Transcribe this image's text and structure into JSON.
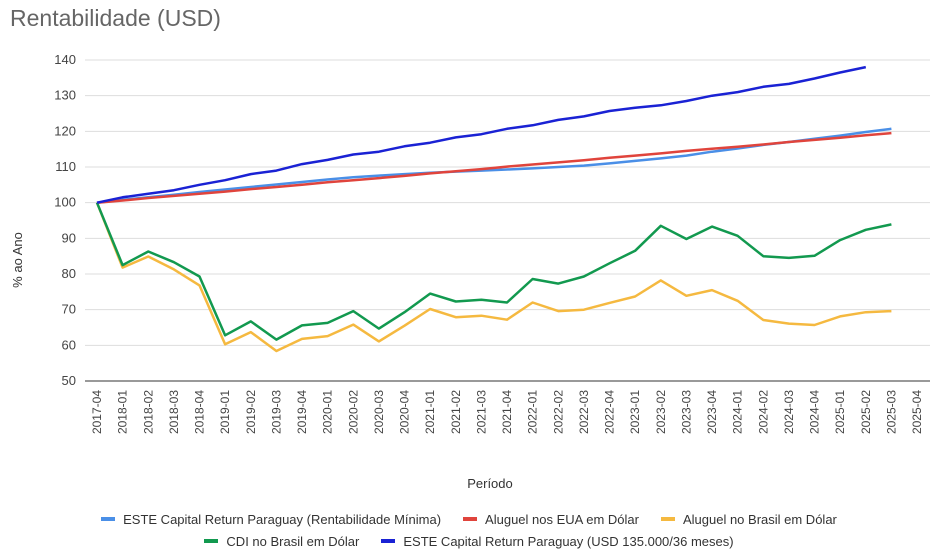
{
  "chart_data": {
    "type": "line",
    "title": "Rentabilidade (USD)",
    "x_label": "Período",
    "y_label": "% ao Ano",
    "categories": [
      "2017-04",
      "2018-01",
      "2018-02",
      "2018-03",
      "2018-04",
      "2019-01",
      "2019-02",
      "2019-03",
      "2019-04",
      "2020-01",
      "2020-02",
      "2020-03",
      "2020-04",
      "2021-01",
      "2021-02",
      "2021-03",
      "2021-04",
      "2022-01",
      "2022-02",
      "2022-03",
      "2022-04",
      "2023-01",
      "2023-02",
      "2023-03",
      "2023-04",
      "2024-01",
      "2024-02",
      "2024-03",
      "2024-04",
      "2025-01",
      "2025-02",
      "2025-03",
      "2025-04"
    ],
    "ylim": [
      50,
      140
    ],
    "yticks": [
      50,
      60,
      70,
      80,
      90,
      100,
      110,
      120,
      130,
      140
    ],
    "grid": true,
    "series": [
      {
        "name": "ESTE Capital Return Paraguay (Rentabilidade Mínima)",
        "color": "#4a8fe7",
        "values": [
          100,
          100.8,
          101.5,
          102.2,
          103,
          103.7,
          104.4,
          105.1,
          105.8,
          106.5,
          107.1,
          107.6,
          108,
          108.4,
          108.7,
          109,
          109.3,
          109.6,
          110,
          110.4,
          111,
          111.7,
          112.4,
          113.2,
          114.3,
          115.2,
          116.2,
          117,
          117.9,
          118.8,
          119.8,
          120.7,
          null
        ]
      },
      {
        "name": "Aluguel nos EUA em Dólar",
        "color": "#e0443c",
        "values": [
          100,
          100.6,
          101.3,
          101.9,
          102.5,
          103.1,
          103.8,
          104.4,
          105,
          105.7,
          106.3,
          106.9,
          107.5,
          108.2,
          108.8,
          109.4,
          110.1,
          110.7,
          111.3,
          111.9,
          112.6,
          113.2,
          113.8,
          114.5,
          115.1,
          115.7,
          116.3,
          117,
          117.6,
          118.2,
          118.9,
          119.5,
          null
        ]
      },
      {
        "name": "Aluguel no Brasil em Dólar",
        "color": "#f5b940",
        "values": [
          100,
          81.8,
          84.9,
          81.3,
          76.8,
          60.3,
          63.7,
          58.4,
          61.8,
          62.6,
          65.8,
          61.1,
          65.5,
          70.2,
          67.9,
          68.3,
          67.2,
          72,
          69.6,
          70,
          71.9,
          73.7,
          78.2,
          73.9,
          75.5,
          72.5,
          67.1,
          66.1,
          65.7,
          68.1,
          69.3,
          69.6,
          null
        ]
      },
      {
        "name": "CDI no Brasil em Dólar",
        "color": "#12994f",
        "values": [
          100,
          82.5,
          86.3,
          83.3,
          79.3,
          62.8,
          66.7,
          61.6,
          65.6,
          66.3,
          69.6,
          64.7,
          69.3,
          74.5,
          72.3,
          72.8,
          72,
          78.6,
          77.3,
          79.3,
          83,
          86.5,
          93.5,
          89.8,
          93.3,
          90.7,
          85,
          84.5,
          85.1,
          89.5,
          92.4,
          93.9,
          null
        ]
      },
      {
        "name": "ESTE Capital Return Paraguay (USD 135.000/36 meses)",
        "color": "#1a22d4",
        "values": [
          100,
          101.5,
          102.5,
          103.5,
          105,
          106.3,
          108,
          109,
          110.8,
          112,
          113.5,
          114.3,
          115.8,
          116.8,
          118.3,
          119.2,
          120.7,
          121.7,
          123.2,
          124.2,
          125.7,
          126.6,
          127.3,
          128.5,
          130,
          131,
          132.5,
          133.3,
          134.8,
          136.5,
          138,
          null,
          null
        ]
      }
    ]
  }
}
